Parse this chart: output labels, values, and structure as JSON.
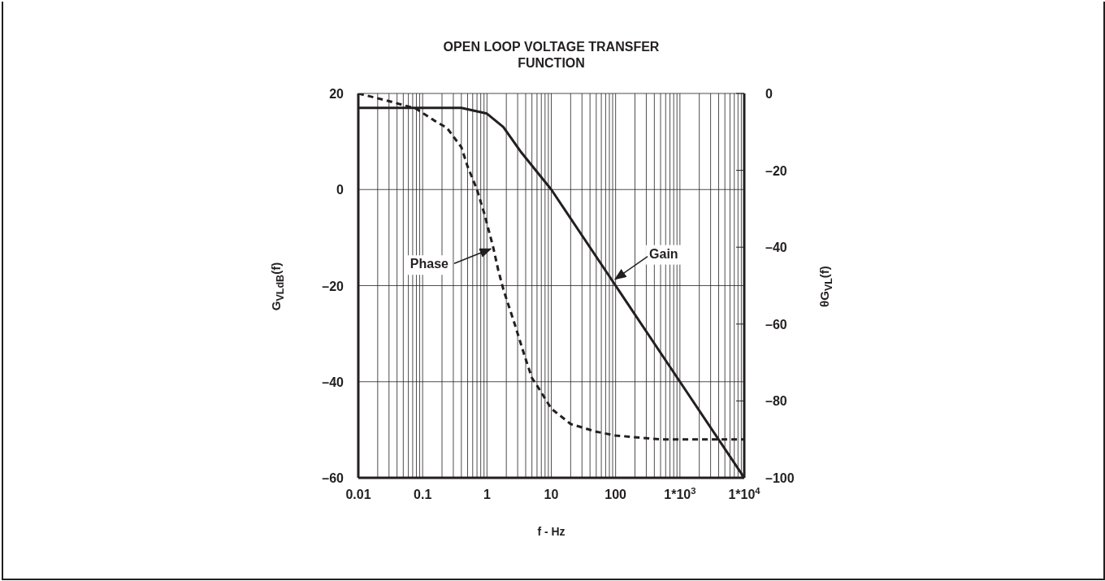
{
  "chart_data": {
    "type": "line",
    "title": "OPEN LOOP VOLTAGE TRANSFER\nFUNCTION",
    "xlabel": "f - Hz",
    "ylabel": "G$_{VLdB}$(f)",
    "y2label": "θG$_{VL}$(f)",
    "annotations": [
      {
        "text": "Gain",
        "x": 90,
        "y": -19
      },
      {
        "text": "Phase",
        "x": 1.25,
        "y": -12
      }
    ],
    "log": "x",
    "grid": true,
    "legend": false,
    "xlim": [
      0.01,
      10000
    ],
    "xticks": [
      0.01,
      0.1,
      1,
      10,
      100,
      {
        "value": 1000,
        "label": "1*10$^{3}$"
      },
      {
        "value": 10000,
        "label": "1*10$^{4}$"
      }
    ],
    "ylim": [
      -60,
      20
    ],
    "yticks": [
      {
        "value": -60,
        "label": "–60"
      },
      {
        "value": -40,
        "label": "–40"
      },
      {
        "value": -20,
        "label": "–20"
      },
      0,
      20
    ],
    "y2lim": [
      -100,
      0
    ],
    "y2ticks": [
      {
        "value": -100,
        "label": "–100"
      },
      {
        "value": -80,
        "label": "–80"
      },
      {
        "value": -60,
        "label": "–60"
      },
      {
        "value": -40,
        "label": "–40"
      },
      {
        "value": -20,
        "label": "–20"
      },
      0
    ],
    "series": [
      {
        "color": "#231f20",
        "line_style": "solid",
        "x": [
          0.01,
          0.4,
          1,
          1.8,
          3.3,
          5,
          10,
          100,
          1000,
          10000
        ],
        "values": [
          17,
          17,
          15.8,
          13,
          8,
          5,
          0,
          -20,
          -40,
          -60
        ]
      },
      {
        "color": "#231f20",
        "line_style": "dashed",
        "axis": "y2",
        "x": [
          0.01,
          0.03,
          0.08,
          0.15,
          0.24,
          0.4,
          0.5,
          0.7,
          0.9,
          1.25,
          1.5,
          1.8,
          2.7,
          3.8,
          5,
          6,
          10,
          20,
          50,
          100,
          500,
          10000
        ],
        "values": [
          0,
          -2,
          -4,
          -7,
          -9,
          -14,
          -19,
          -25,
          -31,
          -40,
          -46,
          -51,
          -60,
          -68,
          -74,
          -76,
          -82,
          -86,
          -88,
          -89,
          -90,
          -90
        ]
      }
    ]
  }
}
